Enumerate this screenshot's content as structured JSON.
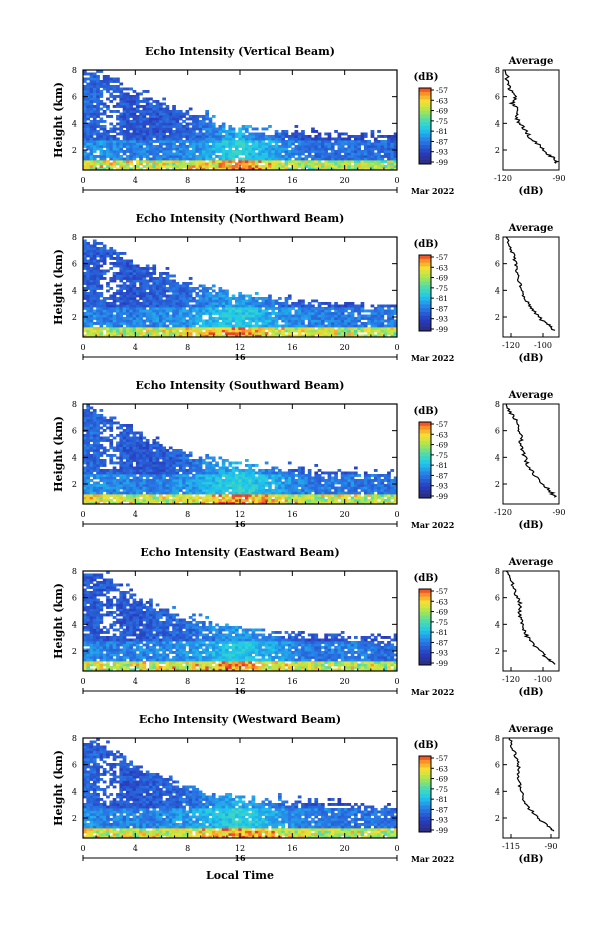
{
  "shared": {
    "ylabel": "Height (km)",
    "ytick_labels": [
      "2",
      "4",
      "6",
      "8"
    ],
    "xtick_labels": [
      "0",
      "4",
      "8",
      "12",
      "16",
      "20",
      "0"
    ],
    "day_label": "16",
    "date_label": "Mar 2022",
    "xlabel": "Local Time",
    "colorbar_unit": "(dB)",
    "colorbar_ticks": [
      "-57",
      "-63",
      "-69",
      "-75",
      "-81",
      "-87",
      "-93",
      "-99"
    ],
    "average_title": "Average",
    "average_xlabel": "(dB)",
    "average_ytick_labels": [
      "2",
      "4",
      "6",
      "8"
    ]
  },
  "chart_data": [
    {
      "type": "heatmap",
      "title": "Echo Intensity (Vertical Beam)",
      "x_range_hours": [
        0,
        24
      ],
      "ylim_km": [
        0.5,
        8
      ],
      "colorbar_range_db": [
        -99,
        -57
      ],
      "top_km": [
        8.0,
        7.6,
        6.4,
        5.6,
        4.9,
        4.4,
        3.9,
        3.6,
        3.5,
        3.4,
        3.3,
        3.2,
        3.1
      ],
      "intensity_db": [
        -84,
        -85,
        -86,
        -86,
        -85,
        -82,
        -78,
        -82,
        -86,
        -88,
        -87,
        -88,
        -88
      ],
      "average": {
        "xlim_db": [
          -120,
          -90
        ],
        "xtick_labels": [
          "-120",
          "-90"
        ],
        "x_db": [
          -91,
          -93,
          -97,
          -101,
          -106,
          -108,
          -111,
          -113,
          -112,
          -115,
          -113,
          -116,
          -117,
          -119
        ],
        "height_km": [
          1.0,
          1.4,
          1.8,
          2.4,
          3.0,
          3.5,
          4.0,
          4.5,
          5.0,
          5.5,
          6.0,
          6.5,
          7.0,
          8.0
        ]
      }
    },
    {
      "type": "heatmap",
      "title": "Echo Intensity (Northward Beam)",
      "x_range_hours": [
        0,
        24
      ],
      "ylim_km": [
        0.5,
        8
      ],
      "colorbar_range_db": [
        -99,
        -57
      ],
      "top_km": [
        8.0,
        7.5,
        6.3,
        5.5,
        4.7,
        4.2,
        3.8,
        3.5,
        3.4,
        3.2,
        3.1,
        3.0,
        3.0
      ],
      "intensity_db": [
        -85,
        -86,
        -86,
        -85,
        -84,
        -81,
        -79,
        -82,
        -85,
        -86,
        -87,
        -86,
        -87
      ],
      "average": {
        "xlim_db": [
          -125,
          -90
        ],
        "xtick_labels": [
          "-120",
          "-100"
        ],
        "x_db": [
          -93,
          -96,
          -101,
          -106,
          -109,
          -112,
          -114,
          -115,
          -116,
          -117,
          -118,
          -121,
          -123
        ],
        "height_km": [
          1.0,
          1.4,
          1.8,
          2.5,
          3.0,
          3.6,
          4.2,
          4.8,
          5.4,
          6.0,
          6.6,
          7.2,
          8.0
        ]
      }
    },
    {
      "type": "heatmap",
      "title": "Echo Intensity (Southward Beam)",
      "x_range_hours": [
        0,
        24
      ],
      "ylim_km": [
        0.5,
        8
      ],
      "colorbar_range_db": [
        -99,
        -57
      ],
      "top_km": [
        8.0,
        7.4,
        6.0,
        5.0,
        4.4,
        4.0,
        3.6,
        3.3,
        3.2,
        3.0,
        2.9,
        2.8,
        2.8
      ],
      "intensity_db": [
        -84,
        -85,
        -86,
        -86,
        -84,
        -81,
        -78,
        -81,
        -85,
        -87,
        -86,
        -87,
        -87
      ],
      "average": {
        "xlim_db": [
          -120,
          -90
        ],
        "xtick_labels": [
          "-120",
          "-90"
        ],
        "x_db": [
          -92,
          -95,
          -99,
          -103,
          -106,
          -108,
          -109,
          -111,
          -110,
          -112,
          -113,
          -116,
          -118
        ],
        "height_km": [
          1.0,
          1.5,
          2.0,
          2.6,
          3.2,
          3.8,
          4.4,
          5.0,
          5.6,
          6.2,
          6.8,
          7.4,
          8.0
        ]
      }
    },
    {
      "type": "heatmap",
      "title": "Echo Intensity (Eastward Beam)",
      "x_range_hours": [
        0,
        24
      ],
      "ylim_km": [
        0.5,
        8
      ],
      "colorbar_range_db": [
        -99,
        -57
      ],
      "top_km": [
        8.0,
        7.6,
        6.2,
        5.4,
        4.6,
        4.2,
        3.8,
        3.6,
        3.5,
        3.3,
        3.2,
        3.1,
        3.0
      ],
      "intensity_db": [
        -85,
        -86,
        -86,
        -85,
        -84,
        -82,
        -79,
        -82,
        -85,
        -87,
        -86,
        -87,
        -88
      ],
      "average": {
        "xlim_db": [
          -125,
          -90
        ],
        "xtick_labels": [
          "-120",
          "-100"
        ],
        "x_db": [
          -93,
          -97,
          -101,
          -106,
          -110,
          -112,
          -113,
          -115,
          -114,
          -116,
          -118,
          -120,
          -123
        ],
        "height_km": [
          1.0,
          1.4,
          1.9,
          2.5,
          3.1,
          3.6,
          4.2,
          4.8,
          5.4,
          6.0,
          6.6,
          7.3,
          8.0
        ]
      }
    },
    {
      "type": "heatmap",
      "title": "Echo Intensity (Westward Beam)",
      "x_range_hours": [
        0,
        24
      ],
      "ylim_km": [
        0.5,
        8
      ],
      "colorbar_range_db": [
        -99,
        -57
      ],
      "top_km": [
        8.0,
        7.4,
        6.1,
        5.2,
        4.5,
        4.0,
        3.7,
        3.5,
        3.4,
        3.3,
        3.1,
        3.0,
        3.0
      ],
      "intensity_db": [
        -84,
        -86,
        -86,
        -85,
        -84,
        -81,
        -78,
        -81,
        -85,
        -86,
        -87,
        -87,
        -88
      ],
      "average": {
        "xlim_db": [
          -120,
          -85
        ],
        "xtick_labels": [
          "-115",
          "-90"
        ],
        "x_db": [
          -88,
          -92,
          -97,
          -102,
          -106,
          -108,
          -109,
          -110,
          -111,
          -110,
          -112,
          -114,
          -116
        ],
        "height_km": [
          1.0,
          1.4,
          1.9,
          2.5,
          3.1,
          3.7,
          4.3,
          4.9,
          5.5,
          6.1,
          6.7,
          7.3,
          8.0
        ]
      }
    }
  ]
}
